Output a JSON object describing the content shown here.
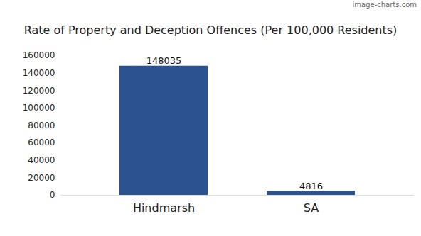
{
  "chart_data": {
    "type": "bar",
    "title": "Rate of Property and Deception Offences (Per 100,000 Residents)",
    "annotations": [
      "image-charts.com"
    ],
    "categories": [
      "Hindmarsh",
      "SA"
    ],
    "values": [
      148035,
      4816
    ],
    "color": "#2d5290",
    "ylim": [
      0,
      160000
    ],
    "yticks": [
      0,
      20000,
      40000,
      60000,
      80000,
      100000,
      120000,
      140000,
      160000
    ],
    "grid": false,
    "data_labels": true
  }
}
